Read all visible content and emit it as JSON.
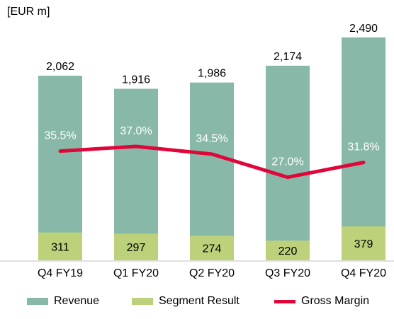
{
  "unit_label": "[EUR m]",
  "chart_data": {
    "type": "bar",
    "categories": [
      "Q4 FY19",
      "Q1 FY20",
      "Q2 FY20",
      "Q3 FY20",
      "Q4 FY20"
    ],
    "series": [
      {
        "name": "Revenue",
        "kind": "bar",
        "color": "#88b9a8",
        "values": [
          2062,
          1916,
          1986,
          2174,
          2490
        ],
        "labels": [
          "2,062",
          "1,916",
          "1,986",
          "2,174",
          "2,490"
        ]
      },
      {
        "name": "Segment Result",
        "kind": "bar",
        "color": "#bcd17a",
        "values": [
          311,
          297,
          274,
          220,
          379
        ],
        "labels": [
          "311",
          "297",
          "274",
          "220",
          "379"
        ]
      },
      {
        "name": "Gross Margin",
        "kind": "line",
        "color": "#e0063a",
        "values": [
          35.5,
          37.0,
          34.5,
          27.0,
          31.8
        ],
        "labels": [
          "35.5%",
          "37.0%",
          "34.5%",
          "27.0%",
          "31.8%"
        ]
      }
    ],
    "ylim": [
      0,
      2750
    ],
    "margin_ylim": [
      0,
      80
    ],
    "grid": false,
    "legend_position": "bottom"
  }
}
